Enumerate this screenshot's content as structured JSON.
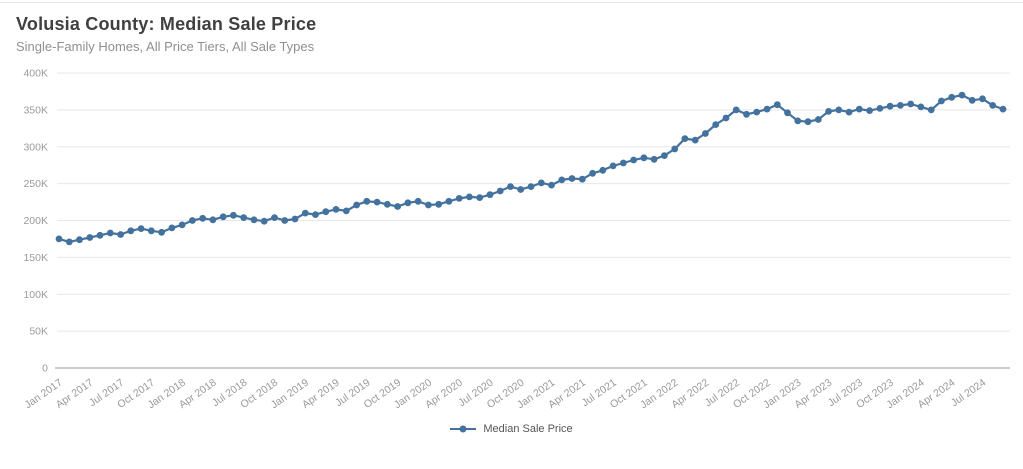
{
  "header": {
    "title": "Volusia County: Median Sale Price",
    "subtitle": "Single-Family Homes, All Price Tiers, All Sale Types"
  },
  "legend": {
    "label": "Median Sale Price"
  },
  "colors": {
    "line": "#44729e",
    "title": "#404040",
    "subtitle": "#8f8f8f",
    "axis_label": "#9a9a9a",
    "gridline": "#e7e7e7",
    "axis_line": "#999999",
    "top_border": "#e4e4e4",
    "background": "#ffffff"
  },
  "chart_data": {
    "type": "line",
    "title": "Volusia County: Median Sale Price",
    "subtitle": "Single-Family Homes, All Price Tiers, All Sale Types",
    "xlabel": "",
    "ylabel": "",
    "series_name": "Median Sale Price",
    "values_unit": "USD thousands",
    "ylim": [
      0,
      400
    ],
    "ytick_step": 50,
    "ytick_labels": [
      "0",
      "50K",
      "100K",
      "150K",
      "200K",
      "250K",
      "300K",
      "350K",
      "400K"
    ],
    "xtick_every": 3,
    "grid": true,
    "marker": "circle",
    "legend_position": "bottom-center",
    "x": [
      "Jan 2017",
      "Feb 2017",
      "Mar 2017",
      "Apr 2017",
      "May 2017",
      "Jun 2017",
      "Jul 2017",
      "Aug 2017",
      "Sep 2017",
      "Oct 2017",
      "Nov 2017",
      "Dec 2017",
      "Jan 2018",
      "Feb 2018",
      "Mar 2018",
      "Apr 2018",
      "May 2018",
      "Jun 2018",
      "Jul 2018",
      "Aug 2018",
      "Sep 2018",
      "Oct 2018",
      "Nov 2018",
      "Dec 2018",
      "Jan 2019",
      "Feb 2019",
      "Mar 2019",
      "Apr 2019",
      "May 2019",
      "Jun 2019",
      "Jul 2019",
      "Aug 2019",
      "Sep 2019",
      "Oct 2019",
      "Nov 2019",
      "Dec 2019",
      "Jan 2020",
      "Feb 2020",
      "Mar 2020",
      "Apr 2020",
      "May 2020",
      "Jun 2020",
      "Jul 2020",
      "Aug 2020",
      "Sep 2020",
      "Oct 2020",
      "Nov 2020",
      "Dec 2020",
      "Jan 2021",
      "Feb 2021",
      "Mar 2021",
      "Apr 2021",
      "May 2021",
      "Jun 2021",
      "Jul 2021",
      "Aug 2021",
      "Sep 2021",
      "Oct 2021",
      "Nov 2021",
      "Dec 2021",
      "Jan 2022",
      "Feb 2022",
      "Mar 2022",
      "Apr 2022",
      "May 2022",
      "Jun 2022",
      "Jul 2022",
      "Aug 2022",
      "Sep 2022",
      "Oct 2022",
      "Nov 2022",
      "Dec 2022",
      "Jan 2023",
      "Feb 2023",
      "Mar 2023",
      "Apr 2023",
      "May 2023",
      "Jun 2023",
      "Jul 2023",
      "Aug 2023",
      "Sep 2023",
      "Oct 2023",
      "Nov 2023",
      "Dec 2023",
      "Jan 2024",
      "Feb 2024",
      "Mar 2024",
      "Apr 2024",
      "May 2024",
      "Jun 2024",
      "Jul 2024",
      "Aug 2024",
      "Sep 2024"
    ],
    "values": [
      175,
      171,
      174,
      177,
      180,
      183,
      181,
      186,
      189,
      186,
      184,
      190,
      194,
      200,
      203,
      201,
      205,
      207,
      204,
      201,
      199,
      204,
      200,
      202,
      210,
      208,
      212,
      215,
      213,
      221,
      226,
      225,
      222,
      219,
      224,
      226,
      221,
      222,
      226,
      230,
      232,
      231,
      235,
      240,
      246,
      242,
      246,
      251,
      248,
      255,
      257,
      256,
      264,
      268,
      274,
      278,
      282,
      285,
      283,
      288,
      297,
      311,
      309,
      318,
      330,
      339,
      350,
      344,
      347,
      351,
      357,
      346,
      335,
      334,
      337,
      348,
      350,
      347,
      351,
      349,
      352,
      355,
      356,
      358,
      354,
      350,
      362,
      367,
      370,
      363,
      365,
      356,
      351
    ]
  }
}
